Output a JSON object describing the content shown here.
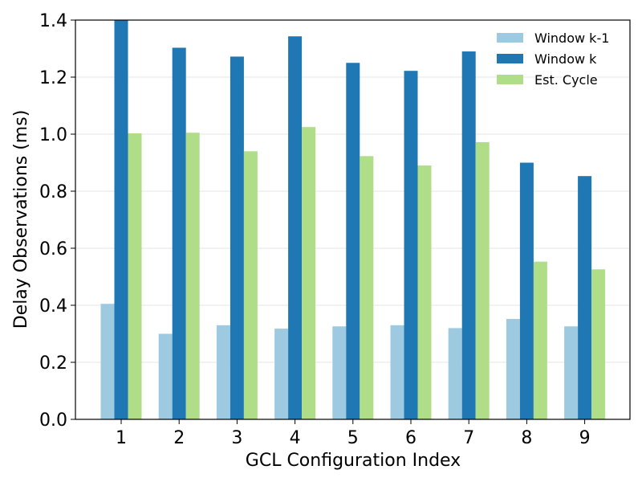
{
  "chart_data": {
    "type": "bar",
    "title": "",
    "xlabel": "GCL Configuration Index",
    "ylabel": "Delay Observations (ms)",
    "categories": [
      "1",
      "2",
      "3",
      "4",
      "5",
      "6",
      "7",
      "8",
      "9"
    ],
    "ylim": [
      0.0,
      1.4
    ],
    "yticks": [
      "0.0",
      "0.2",
      "0.4",
      "0.6",
      "0.8",
      "1.0",
      "1.2",
      "1.4"
    ],
    "grid": "horizontal",
    "legend_position": "top-right",
    "series": [
      {
        "name": "Window k-1",
        "color": "#9ecae1",
        "values": [
          0.405,
          0.3,
          0.33,
          0.318,
          0.326,
          0.33,
          0.32,
          0.352,
          0.326
        ]
      },
      {
        "name": "Window k",
        "color": "#1f77b4",
        "values": [
          1.4,
          1.303,
          1.272,
          1.343,
          1.25,
          1.222,
          1.29,
          0.9,
          0.853
        ]
      },
      {
        "name": "Est. Cycle",
        "color": "#b0dd88",
        "values": [
          1.003,
          1.005,
          0.94,
          1.025,
          0.923,
          0.89,
          0.972,
          0.553,
          0.526
        ]
      }
    ]
  }
}
